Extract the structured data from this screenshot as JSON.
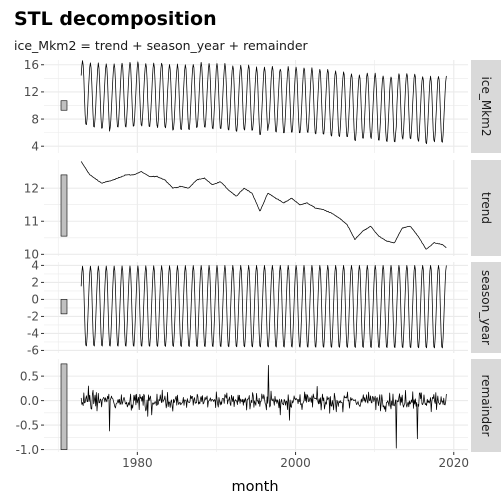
{
  "title": "STL decomposition",
  "subtitle": "ice_Mkm2 = trend + season_year + remainder",
  "chart_data": {
    "type": "line",
    "title": "STL decomposition",
    "subtitle": "ice_Mkm2 = trend + season_year + remainder",
    "xlabel": "month",
    "x_range": [
      1968.2,
      2021.8
    ],
    "x_ticks": [
      1980,
      2000,
      2020
    ],
    "x_tick_labels": [
      "1980",
      "2000",
      "2020"
    ],
    "series_start": 1972.9,
    "series_end": 2019.1,
    "panels": [
      {
        "name": "ice_Mkm2",
        "ylim": [
          3.0,
          16.7
        ],
        "yticks": [
          4,
          8,
          12,
          16
        ],
        "ytick_labels": [
          "4",
          "8",
          "12",
          "16"
        ],
        "scale_bar": [
          9.3,
          10.7
        ],
        "component": "data",
        "min": 4.0,
        "max": 16.2
      },
      {
        "name": "trend",
        "ylim": [
          9.95,
          12.85
        ],
        "yticks": [
          10,
          11,
          12
        ],
        "ytick_labels": [
          "10",
          "11",
          "12"
        ],
        "scale_bar": [
          10.55,
          12.4
        ],
        "component": "trend",
        "knots": [
          [
            1972.9,
            12.8
          ],
          [
            1974.0,
            12.4
          ],
          [
            1975.5,
            12.15
          ],
          [
            1977.0,
            12.25
          ],
          [
            1978.5,
            12.4
          ],
          [
            1979.5,
            12.4
          ],
          [
            1980.5,
            12.5
          ],
          [
            1981.5,
            12.35
          ],
          [
            1982.5,
            12.35
          ],
          [
            1983.5,
            12.25
          ],
          [
            1984.5,
            12.0
          ],
          [
            1985.5,
            12.05
          ],
          [
            1986.5,
            12.0
          ],
          [
            1987.5,
            12.25
          ],
          [
            1988.5,
            12.3
          ],
          [
            1989.5,
            12.1
          ],
          [
            1990.5,
            12.2
          ],
          [
            1991.5,
            11.95
          ],
          [
            1992.5,
            11.75
          ],
          [
            1993.5,
            12.0
          ],
          [
            1994.5,
            11.85
          ],
          [
            1995.5,
            11.3
          ],
          [
            1996.5,
            11.85
          ],
          [
            1997.5,
            11.7
          ],
          [
            1998.5,
            11.55
          ],
          [
            1999.5,
            11.7
          ],
          [
            2000.5,
            11.5
          ],
          [
            2001.5,
            11.55
          ],
          [
            2002.5,
            11.4
          ],
          [
            2003.5,
            11.35
          ],
          [
            2004.5,
            11.25
          ],
          [
            2005.5,
            11.1
          ],
          [
            2006.5,
            10.9
          ],
          [
            2007.5,
            10.45
          ],
          [
            2008.5,
            10.7
          ],
          [
            2009.5,
            10.85
          ],
          [
            2010.5,
            10.55
          ],
          [
            2011.5,
            10.4
          ],
          [
            2012.5,
            10.35
          ],
          [
            2013.5,
            10.8
          ],
          [
            2014.5,
            10.85
          ],
          [
            2015.5,
            10.55
          ],
          [
            2016.5,
            10.15
          ],
          [
            2017.5,
            10.35
          ],
          [
            2018.5,
            10.3
          ],
          [
            2019.1,
            10.2
          ]
        ]
      },
      {
        "name": "season_year",
        "ylim": [
          -6.3,
          4.4
        ],
        "yticks": [
          -6,
          -4,
          -2,
          0,
          2,
          4
        ],
        "ytick_labels": [
          "-6",
          "-4",
          "-2",
          "0",
          "2",
          "4"
        ],
        "scale_bar": [
          -1.7,
          0.0
        ],
        "component": "season",
        "min": -5.7,
        "max": 4.0
      },
      {
        "name": "remainder",
        "ylim": [
          -1.05,
          0.85
        ],
        "yticks": [
          -1.0,
          -0.5,
          0.0,
          0.5
        ],
        "ytick_labels": [
          "-1.0",
          "-0.5",
          "0.0",
          "0.5"
        ],
        "scale_bar": [
          -1.0,
          0.75
        ],
        "component": "remainder",
        "min": -0.97,
        "max": 0.72
      }
    ],
    "grid": true,
    "line_color": "#000000",
    "panel_background": "#ffffff",
    "grid_color": "#ebebeb",
    "strip_color": "#d9d9d9",
    "scale_bar_color": "#c0c0c0"
  }
}
